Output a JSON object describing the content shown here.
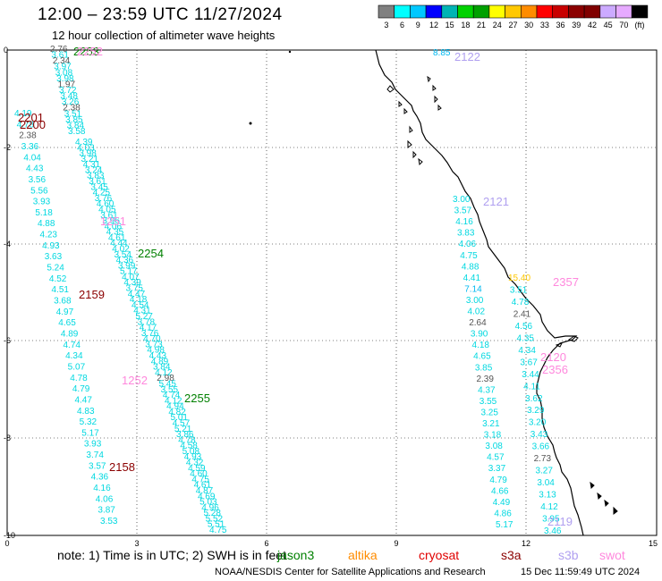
{
  "header": {
    "title": "12:00 – 23:59 UTC 11/27/2024",
    "subtitle": "12 hour collection of altimeter wave heights"
  },
  "colorbar": {
    "colors": [
      "#808080",
      "#00ffff",
      "#00c8ff",
      "#0000ff",
      "#00b4b4",
      "#00d200",
      "#00a000",
      "#ffff00",
      "#ffc800",
      "#ff8c00",
      "#ff0000",
      "#c80000",
      "#8b0000",
      "#800000",
      "#ccaaff",
      "#e6aaff",
      "#000000"
    ],
    "labels": [
      "3",
      "6",
      "9",
      "12",
      "15",
      "18",
      "21",
      "24",
      "27",
      "30",
      "33",
      "36",
      "39",
      "42",
      "45",
      "70",
      "(ft)"
    ]
  },
  "axes": {
    "x_ticks": [
      "0",
      "3",
      "6",
      "9",
      "12",
      "15"
    ],
    "y_ticks": [
      "0",
      "-2",
      "-4",
      "-6",
      "-8",
      "-10"
    ]
  },
  "satellites": [
    {
      "name": "jason3",
      "color": "#008000"
    },
    {
      "name": "altika",
      "color": "#ff8c00"
    },
    {
      "name": "cryosat",
      "color": "#e00000"
    },
    {
      "name": "s3a",
      "color": "#8b0000"
    },
    {
      "name": "s3b",
      "color": "#b0a0f0"
    },
    {
      "name": "swot",
      "color": "#ff88dd"
    }
  ],
  "footer": {
    "note": "note:  1) Time is in UTC; 2) SWH is in feet",
    "credit": "NOAA/NESDIS Center for Satellite Applications and Research",
    "timestamp": "15 Dec 11:59:49 UTC 2024"
  },
  "passes": [
    {
      "id": "2253",
      "sat": "jason3"
    },
    {
      "id": "2201",
      "sat": "s3a"
    },
    {
      "id": "2200",
      "sat": "s3a"
    },
    {
      "id": "2252",
      "sat": "swot"
    },
    {
      "id": "1251",
      "sat": "swot"
    },
    {
      "id": "2254",
      "sat": "jason3"
    },
    {
      "id": "2159",
      "sat": "s3a"
    },
    {
      "id": "1252",
      "sat": "swot"
    },
    {
      "id": "2255",
      "sat": "jason3"
    },
    {
      "id": "2158",
      "sat": "s3a"
    },
    {
      "id": "2122",
      "sat": "s3b"
    },
    {
      "id": "2121",
      "sat": "s3b"
    },
    {
      "id": "2357",
      "sat": "swot"
    },
    {
      "id": "2120",
      "sat": "swot"
    },
    {
      "id": "2356",
      "sat": "swot"
    },
    {
      "id": "2119",
      "sat": "s3b"
    }
  ],
  "tracks": [
    {
      "name": "track-a",
      "values": [
        "2.76",
        "3.61",
        "2.34",
        "3.97",
        "3.08",
        "3.98",
        "1.97",
        "3.72",
        "3.48",
        "3.26",
        "2.38",
        "3.51",
        "3.85",
        "3.84",
        "3.58"
      ]
    },
    {
      "name": "track-b",
      "values": [
        "4.19",
        "4.78",
        "2.38",
        "3.36",
        "4.04",
        "4.43",
        "3.56",
        "5.56",
        "3.93",
        "5.18",
        "4.88",
        "4.23",
        "4.93",
        "3.63",
        "5.24",
        "4.52",
        "4.51",
        "3.68",
        "4.97",
        "4.65",
        "4.89",
        "4.74",
        "4.34",
        "5.07",
        "4.78",
        "4.79",
        "4.47",
        "4.83",
        "5.32",
        "5.17",
        "3.93",
        "3.74",
        "3.57",
        "4.36",
        "4.16",
        "4.06",
        "3.87",
        "3.53"
      ]
    },
    {
      "name": "track-c",
      "values": [
        "4.39",
        "4.03",
        "3.98",
        "3.21",
        "4.31",
        "3.24",
        "3.83",
        "3.61",
        "3.45",
        "4.25",
        "3.76",
        "4.60",
        "4.05",
        "3.61",
        "3.96",
        "4.06",
        "4.35",
        "4.61",
        "4.44",
        "4.02",
        "3.54",
        "4.36",
        "3.99",
        "5.17",
        "4.07",
        "4.39",
        "3.75",
        "4.47",
        "4.18",
        "4.54",
        "4.31",
        "5.27",
        "3.78",
        "4.17",
        "3.76",
        "4.70",
        "3.73",
        "4.98",
        "4.43",
        "4.89",
        "3.84",
        "4.12",
        "2.98",
        "5.45",
        "3.55",
        "4.74",
        "4.12",
        "4.94",
        "4.82",
        "5.01",
        "4.57",
        "5.21",
        "3.86",
        "4.78",
        "4.58",
        "5.08",
        "4.93",
        "4.32",
        "4.59",
        "4.60",
        "4.75",
        "4.61",
        "4.87",
        "4.69",
        "5.03",
        "4.96",
        "5.28",
        "5.52",
        "5.51",
        "4.75"
      ]
    },
    {
      "name": "track-d",
      "values": [
        "8.85",
        "3.00",
        "3.57",
        "4.16",
        "3.83",
        "4.06",
        "4.75",
        "4.88",
        "4.41",
        "7.14",
        "3.00",
        "4.02",
        "2.64",
        "3.90",
        "4.18",
        "4.65",
        "3.85",
        "2.39",
        "4.37",
        "3.55",
        "3.25",
        "3.21",
        "3.18",
        "3.08",
        "4.57",
        "3.37",
        "4.79",
        "4.66",
        "4.49",
        "4.86",
        "5.17"
      ]
    },
    {
      "name": "track-e",
      "values": [
        "15.40",
        "3.51",
        "4.78",
        "2.41",
        "4.56",
        "4.35",
        "4.34",
        "3.67",
        "3.44",
        "4.11",
        "3.62",
        "3.29",
        "3.20",
        "3.43",
        "3.66",
        "2.73",
        "3.27",
        "3.04",
        "3.13",
        "4.12",
        "3.95",
        "3.46"
      ]
    }
  ]
}
